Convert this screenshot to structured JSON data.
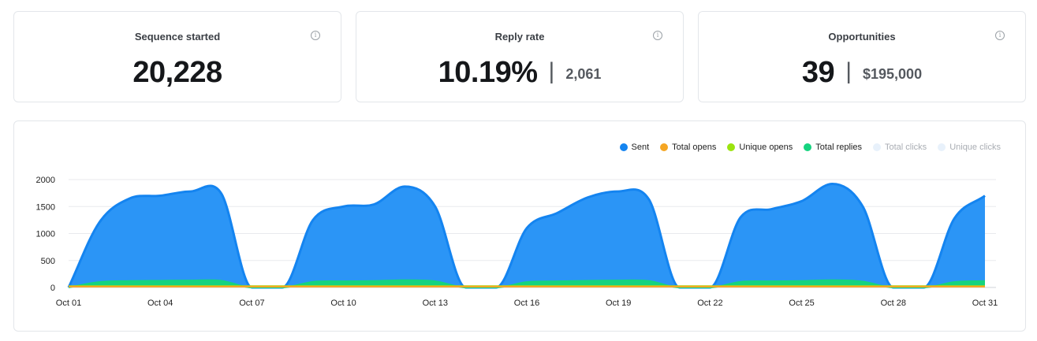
{
  "stats": [
    {
      "label": "Sequence started",
      "value": "20,228",
      "secondary": ""
    },
    {
      "label": "Reply rate",
      "value": "10.19%",
      "secondary": "2,061"
    },
    {
      "label": "Opportunities",
      "value": "39",
      "secondary": "$195,000"
    }
  ],
  "icons": {
    "info": "info-icon"
  },
  "legend": [
    {
      "name": "Sent",
      "color": "#1484f0",
      "muted": false
    },
    {
      "name": "Total opens",
      "color": "#f5a623",
      "muted": false
    },
    {
      "name": "Unique opens",
      "color": "#9be40f",
      "muted": false
    },
    {
      "name": "Total replies",
      "color": "#15d37f",
      "muted": false
    },
    {
      "name": "Total clicks",
      "color": "#e8f1fb",
      "muted": true
    },
    {
      "name": "Unique clicks",
      "color": "#e8f1fb",
      "muted": true
    }
  ],
  "chart_data": {
    "type": "area",
    "xlabels": [
      "Oct 01",
      "Oct 02",
      "Oct 03",
      "Oct 04",
      "Oct 05",
      "Oct 06",
      "Oct 07",
      "Oct 08",
      "Oct 09",
      "Oct 10",
      "Oct 11",
      "Oct 12",
      "Oct 13",
      "Oct 14",
      "Oct 15",
      "Oct 16",
      "Oct 17",
      "Oct 18",
      "Oct 19",
      "Oct 20",
      "Oct 21",
      "Oct 22",
      "Oct 23",
      "Oct 24",
      "Oct 25",
      "Oct 26",
      "Oct 27",
      "Oct 28",
      "Oct 29",
      "Oct 30",
      "Oct 31"
    ],
    "xticks": [
      "Oct 01",
      "Oct 04",
      "Oct 07",
      "Oct 10",
      "Oct 13",
      "Oct 16",
      "Oct 19",
      "Oct 22",
      "Oct 25",
      "Oct 28",
      "Oct 31"
    ],
    "yticks": [
      0,
      500,
      1000,
      1500,
      2000
    ],
    "ylim": [
      0,
      2000
    ],
    "grid": true,
    "legend_position": "top-right",
    "series": [
      {
        "name": "Sent",
        "color": "#1484f0",
        "values": [
          0,
          1200,
          1650,
          1700,
          1780,
          1740,
          0,
          0,
          1250,
          1500,
          1540,
          1870,
          1500,
          0,
          0,
          1100,
          1380,
          1670,
          1780,
          1630,
          0,
          0,
          1300,
          1450,
          1600,
          1920,
          1500,
          0,
          0,
          1280,
          1700
        ]
      },
      {
        "name": "Total replies",
        "color": "#15d37f",
        "values": [
          0,
          100,
          120,
          125,
          130,
          125,
          0,
          0,
          105,
          115,
          120,
          135,
          115,
          0,
          0,
          100,
          115,
          125,
          130,
          120,
          0,
          0,
          105,
          115,
          120,
          135,
          110,
          0,
          0,
          100,
          120
        ]
      },
      {
        "name": "Unique opens",
        "color": "#9be40f",
        "values": [
          25,
          25,
          25,
          25,
          25,
          25,
          25,
          25,
          25,
          25,
          25,
          25,
          25,
          25,
          25,
          25,
          25,
          25,
          25,
          25,
          25,
          25,
          25,
          25,
          25,
          25,
          25,
          25,
          25,
          25,
          25
        ]
      },
      {
        "name": "Total opens",
        "color": "#f5a623",
        "values": [
          18,
          18,
          18,
          18,
          18,
          18,
          18,
          18,
          18,
          18,
          18,
          18,
          18,
          18,
          18,
          18,
          18,
          18,
          18,
          18,
          18,
          18,
          18,
          18,
          18,
          18,
          18,
          18,
          18,
          18,
          18
        ]
      }
    ]
  }
}
